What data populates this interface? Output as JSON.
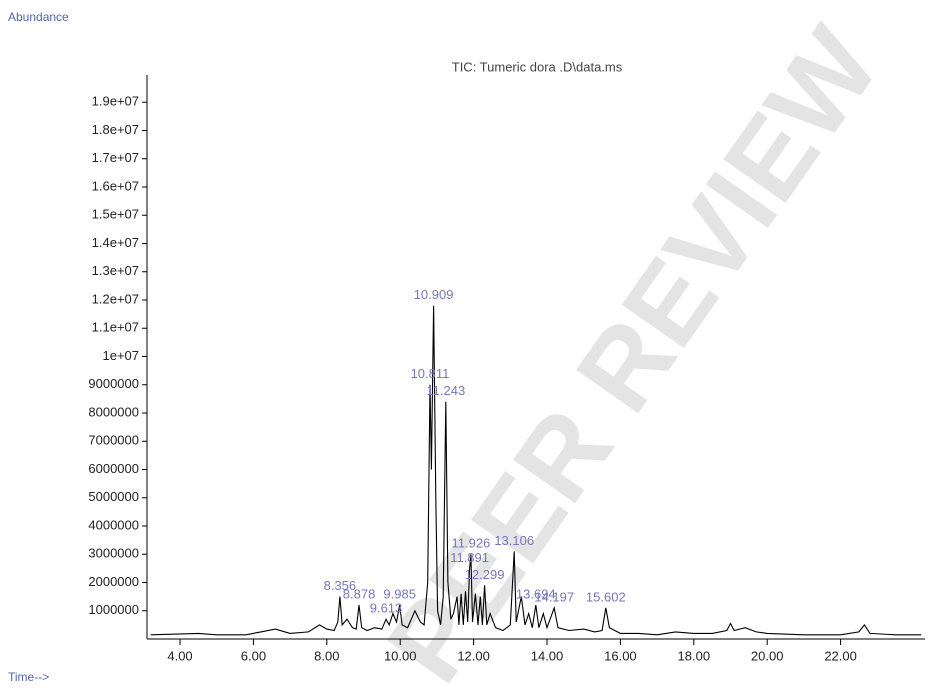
{
  "chart_data": {
    "type": "line",
    "y_label": "Abundance",
    "x_label": "Time-->",
    "title": "TIC: Tumeric dora .D\\data.ms",
    "watermark": "PEER REVIEW",
    "color": "#000000",
    "label_color": "#7777bb",
    "xlim": [
      3.1,
      24.3
    ],
    "ylim": [
      0,
      20000000
    ],
    "xticks": [
      {
        "value": 4,
        "label": "4.00"
      },
      {
        "value": 6,
        "label": "6.00"
      },
      {
        "value": 8,
        "label": "8.00"
      },
      {
        "value": 10,
        "label": "10.00"
      },
      {
        "value": 12,
        "label": "12.00"
      },
      {
        "value": 14,
        "label": "14.00"
      },
      {
        "value": 16,
        "label": "16.00"
      },
      {
        "value": 18,
        "label": "18.00"
      },
      {
        "value": 20,
        "label": "20.00"
      },
      {
        "value": 22,
        "label": "22.00"
      }
    ],
    "yticks": [
      1000000,
      2000000,
      3000000,
      4000000,
      5000000,
      6000000,
      7000000,
      8000000,
      9000000,
      {
        "value": 10000000,
        "label": "1e+07"
      },
      {
        "value": 11000000,
        "label": "1.1e+07"
      },
      {
        "value": 12000000,
        "label": "1.2e+07"
      },
      {
        "value": 13000000,
        "label": "1.3e+07"
      },
      {
        "value": 14000000,
        "label": "1.4e+07"
      },
      {
        "value": 15000000,
        "label": "1.5e+07"
      },
      {
        "value": 16000000,
        "label": "1.6e+07"
      },
      {
        "value": 17000000,
        "label": "1.7e+07"
      },
      {
        "value": 18000000,
        "label": "1.8e+07"
      },
      {
        "value": 19000000,
        "label": "1.9e+07"
      }
    ],
    "x": [
      3.2,
      4.5,
      5.0,
      5.8,
      6.2,
      6.6,
      7.0,
      7.5,
      7.8,
      8.0,
      8.2,
      8.3,
      8.356,
      8.42,
      8.55,
      8.7,
      8.8,
      8.878,
      8.95,
      9.1,
      9.3,
      9.5,
      9.613,
      9.7,
      9.8,
      9.9,
      9.985,
      10.05,
      10.2,
      10.4,
      10.55,
      10.65,
      10.75,
      10.811,
      10.85,
      10.909,
      10.97,
      11.02,
      11.1,
      11.17,
      11.243,
      11.3,
      11.38,
      11.45,
      11.55,
      11.6,
      11.66,
      11.72,
      11.78,
      11.84,
      11.891,
      11.926,
      11.97,
      12.05,
      12.12,
      12.181,
      12.24,
      12.299,
      12.36,
      12.45,
      12.6,
      12.8,
      13.0,
      13.106,
      13.16,
      13.3,
      13.4,
      13.5,
      13.6,
      13.694,
      13.78,
      13.9,
      14.0,
      14.197,
      14.3,
      14.6,
      15.0,
      15.3,
      15.5,
      15.602,
      15.7,
      16.0,
      16.5,
      17.0,
      17.5,
      18.0,
      18.5,
      18.9,
      19.0,
      19.1,
      19.4,
      19.7,
      20.0,
      21.0,
      22.0,
      22.5,
      22.65,
      22.8,
      23.5,
      24.2
    ],
    "values": [
      150000,
      200000,
      150000,
      150000,
      250000,
      350000,
      200000,
      250000,
      500000,
      350000,
      300000,
      600000,
      1500000,
      500000,
      700000,
      400000,
      350000,
      1200000,
      400000,
      300000,
      400000,
      350000,
      700000,
      500000,
      900000,
      600000,
      1200000,
      500000,
      400000,
      1000000,
      600000,
      500000,
      2000000,
      9000000,
      6000000,
      11800000,
      5000000,
      1000000,
      500000,
      1500000,
      8400000,
      2000000,
      700000,
      900000,
      1500000,
      500000,
      1600000,
      500000,
      1700000,
      600000,
      2500000,
      3000000,
      600000,
      1600000,
      500000,
      1500000,
      500000,
      1900000,
      500000,
      900000,
      400000,
      300000,
      500000,
      3100000,
      600000,
      1500000,
      500000,
      900000,
      400000,
      1200000,
      400000,
      900000,
      400000,
      1100000,
      400000,
      300000,
      350000,
      250000,
      300000,
      1100000,
      400000,
      200000,
      200000,
      150000,
      250000,
      200000,
      200000,
      300000,
      550000,
      300000,
      400000,
      250000,
      200000,
      150000,
      150000,
      250000,
      500000,
      200000,
      150000,
      150000
    ],
    "peak_labels": [
      8.356,
      8.878,
      9.613,
      9.985,
      10.811,
      10.909,
      11.243,
      11.891,
      11.926,
      12.299,
      13.106,
      13.694,
      14.197,
      15.602
    ],
    "peak_heights": [
      1500000,
      1200000,
      700000,
      1200000,
      9000000,
      11800000,
      8400000,
      2500000,
      3000000,
      1900000,
      3100000,
      1200000,
      1100000,
      1100000
    ]
  }
}
